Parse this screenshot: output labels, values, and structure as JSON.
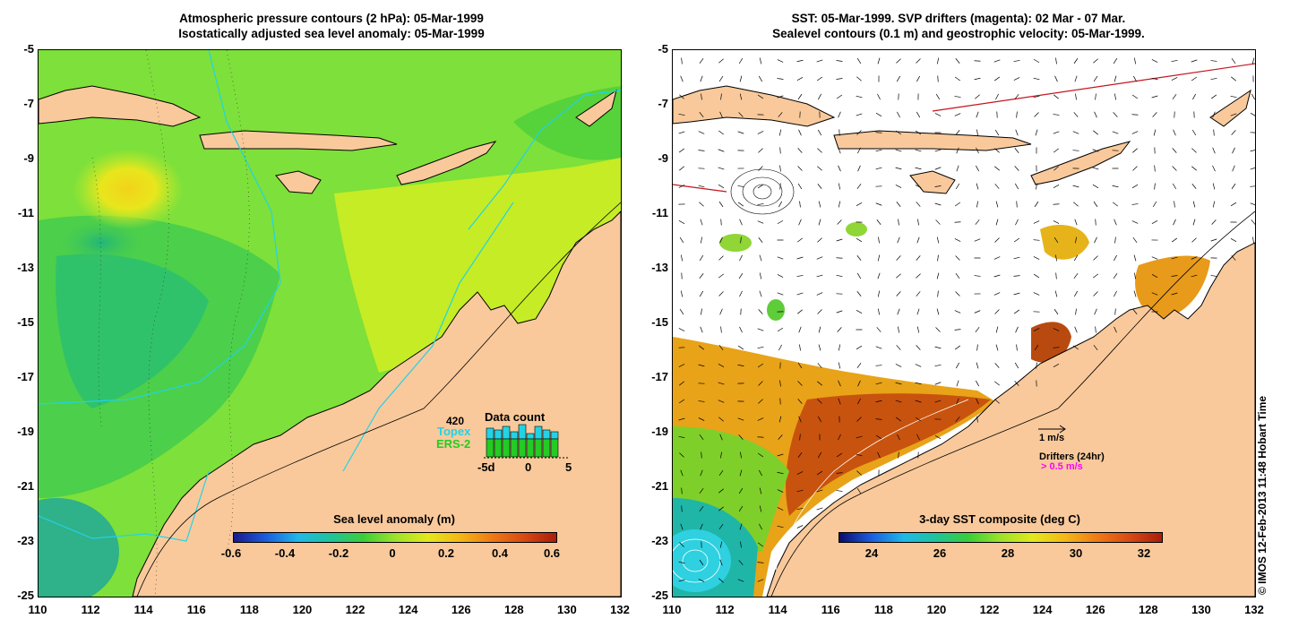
{
  "left_panel": {
    "title_line1": "Atmospheric pressure contours (2 hPa): 05-Mar-1999",
    "title_line2": "Isostatically adjusted sea level anomaly: 05-Mar-1999",
    "colorbar_title": "Sea level anomaly (m)",
    "colorbar_ticks": [
      "-0.6",
      "-0.4",
      "-0.2",
      "0",
      "0.2",
      "0.4",
      "0.6"
    ],
    "data_count": {
      "title": "Data count",
      "max_label": "420",
      "series1": "Topex",
      "series2": "ERS-2",
      "ticks": [
        "-5d",
        "0",
        "5"
      ],
      "series1_color": "#22d3e6",
      "series2_color": "#22cc22"
    }
  },
  "right_panel": {
    "title_line1": "SST: 05-Mar-1999. SVP drifters (magenta): 02 Mar - 07 Mar.",
    "title_line2": "Sealevel contours (0.1 m) and geostrophic velocity: 05-Mar-1999.",
    "colorbar_title": "3-day SST composite (deg C)",
    "colorbar_ticks": [
      "24",
      "26",
      "28",
      "30",
      "32"
    ],
    "velocity_scale": "1 m/s",
    "drifters_label": "Drifters (24hr)",
    "drifters_scale": "> 0.5 m/s",
    "drifter_color": "#ff00ff"
  },
  "axes": {
    "y_ticks": [
      "-5",
      "-7",
      "-9",
      "-11",
      "-13",
      "-15",
      "-17",
      "-19",
      "-21",
      "-23",
      "-25"
    ],
    "x_ticks": [
      "110",
      "112",
      "114",
      "116",
      "118",
      "120",
      "122",
      "124",
      "126",
      "128",
      "130",
      "132"
    ]
  },
  "credit": "© IMOS 12-Feb-2013 11:48 Hobart Time",
  "colors": {
    "land": "#f9c99b",
    "sla_background": "#7ee03a",
    "sst_missing": "#ffffff"
  }
}
